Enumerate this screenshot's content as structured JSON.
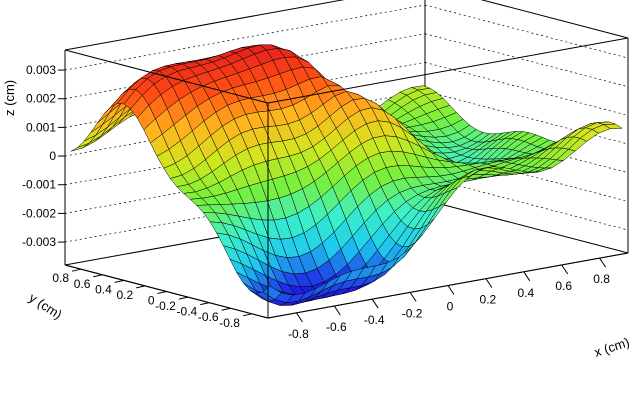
{
  "chart_data": {
    "type": "surface",
    "title": "",
    "xlabel": "x (cm)",
    "ylabel": "y (cm)",
    "zlabel": "z (cm)",
    "xlim": [
      -0.95,
      0.95
    ],
    "ylim": [
      -0.95,
      0.95
    ],
    "zlim": [
      -0.0038,
      0.0037
    ],
    "x_ticks": [
      -0.8,
      -0.6,
      -0.4,
      -0.2,
      0,
      0.2,
      0.4,
      0.6,
      0.8
    ],
    "x_tick_labels": [
      "-0.8",
      "-0.6",
      "-0.4",
      "-0.2",
      "0",
      "0.2",
      "0.4",
      "0.6",
      "0.8"
    ],
    "y_ticks": [
      -0.8,
      -0.6,
      -0.4,
      -0.2,
      0,
      0.2,
      0.4,
      0.6,
      0.8
    ],
    "y_tick_labels": [
      "-0.8",
      "-0.6",
      "-0.4",
      "-0.2",
      "0",
      "0.2",
      "0.4",
      "0.6",
      "0.8"
    ],
    "z_ticks": [
      -0.003,
      -0.002,
      -0.001,
      0,
      0.001,
      0.002,
      0.003
    ],
    "z_tick_labels": [
      "-0.003",
      "-0.002",
      "-0.001",
      "0",
      "0.001",
      "0.002",
      "0.003"
    ],
    "grid": true,
    "colormap": [
      "#1e1ee6",
      "#1ec8f0",
      "#3cf0c8",
      "#78f03c",
      "#d2e61e",
      "#ffb41e",
      "#ff5014",
      "#e61e1e"
    ],
    "surface_components": [
      {
        "x": -0.55,
        "y": 0.45,
        "sx": 0.35,
        "sy": 0.28,
        "amp": 0.0036
      },
      {
        "x": -0.05,
        "y": 0.25,
        "sx": 0.22,
        "sy": 0.28,
        "amp": 0.0018
      },
      {
        "x": 0.05,
        "y": -0.1,
        "sx": 0.2,
        "sy": 0.22,
        "amp": 0.0009
      },
      {
        "x": 0.1,
        "y": 0.75,
        "sx": 0.3,
        "sy": 0.22,
        "amp": -0.0012
      },
      {
        "x": -0.7,
        "y": -0.75,
        "sx": 0.35,
        "sy": 0.3,
        "amp": -0.0036
      },
      {
        "x": -0.25,
        "y": -0.65,
        "sx": 0.22,
        "sy": 0.25,
        "amp": -0.0018
      },
      {
        "x": 0.65,
        "y": 0.1,
        "sx": 0.25,
        "sy": 0.35,
        "amp": -0.0015
      },
      {
        "x": 0.45,
        "y": -0.55,
        "sx": 0.22,
        "sy": 0.2,
        "amp": -0.0008
      },
      {
        "x": 0.2,
        "y": 0.2,
        "sx": 0.1,
        "sy": 0.12,
        "amp": -0.0028
      },
      {
        "x": 0.85,
        "y": -0.7,
        "sx": 0.18,
        "sy": 0.2,
        "amp": 0.0006
      }
    ],
    "surface_ripple": {
      "amp": 0.00035,
      "kx": 9,
      "ky": 7
    },
    "grid_cells": 30
  }
}
